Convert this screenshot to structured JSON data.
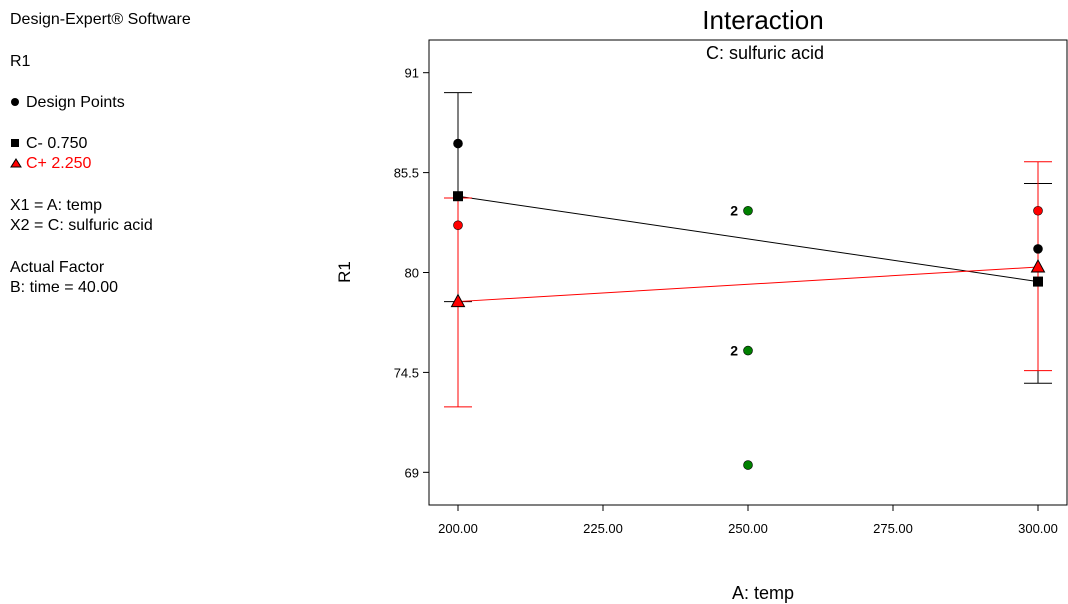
{
  "side_panel": {
    "software": "Design-Expert® Software",
    "response": "R1",
    "design_points_label": "Design Points",
    "c_minus_label": "C- 0.750",
    "c_plus_label": "C+ 2.250",
    "x1_label": "X1 = A: temp",
    "x2_label": "X2 = C: sulfuric acid",
    "actual_factor_heading": "Actual Factor",
    "actual_factor_value": "B: time = 40.00"
  },
  "chart_data": {
    "type": "line",
    "title": "Interaction",
    "subtitle": "C: sulfuric acid",
    "xlabel": "A: temp",
    "ylabel": "R1",
    "xlim": [
      195,
      305
    ],
    "ylim": [
      67.2,
      92.8
    ],
    "x_ticks": [
      "200.00",
      "225.00",
      "250.00",
      "275.00",
      "300.00"
    ],
    "y_ticks": [
      "69",
      "74.5",
      "80",
      "85.5",
      "91"
    ],
    "x_tick_values": [
      200,
      225,
      250,
      275,
      300
    ],
    "y_tick_values": [
      69,
      74.5,
      80,
      85.5,
      91
    ],
    "series": [
      {
        "name": "C- 0.750",
        "color": "#000000",
        "marker": "square",
        "x": [
          200,
          300
        ],
        "y": [
          84.2,
          79.5
        ],
        "ci_low": [
          78.4,
          73.9
        ],
        "ci_high": [
          89.9,
          84.9
        ]
      },
      {
        "name": "C+ 2.250",
        "color": "#ff0000",
        "marker": "triangle",
        "x": [
          200,
          300
        ],
        "y": [
          78.4,
          80.3
        ],
        "ci_low": [
          72.6,
          74.6
        ],
        "ci_high": [
          84.1,
          86.1
        ]
      }
    ],
    "design_points": [
      {
        "x": 200,
        "y": 87.1,
        "color": "#000000"
      },
      {
        "x": 200,
        "y": 82.6,
        "color": "#ff0000"
      },
      {
        "x": 300,
        "y": 83.4,
        "color": "#ff0000"
      },
      {
        "x": 300,
        "y": 81.3,
        "color": "#000000"
      },
      {
        "x": 250,
        "y": 83.4,
        "color": "#008000",
        "label": "2"
      },
      {
        "x": 250,
        "y": 75.7,
        "color": "#008000",
        "label": "2"
      },
      {
        "x": 250,
        "y": 69.4,
        "color": "#008000"
      }
    ]
  }
}
